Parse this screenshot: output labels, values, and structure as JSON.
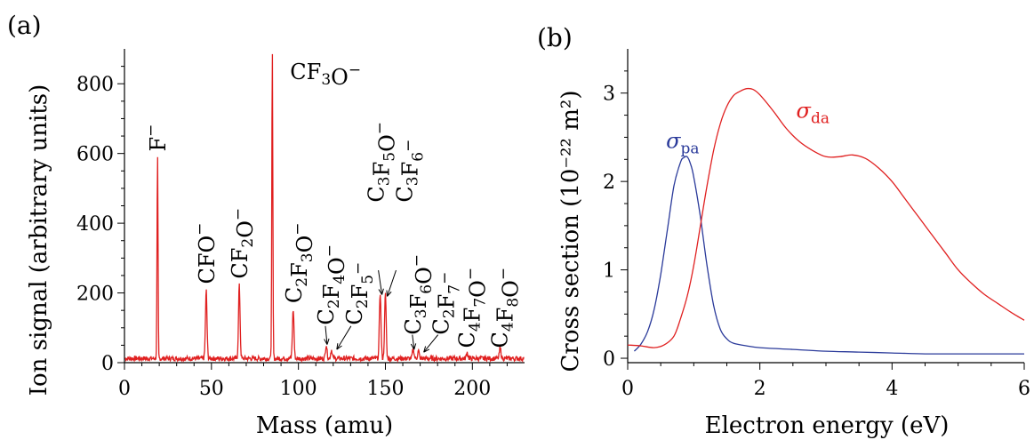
{
  "chart_data": [
    {
      "type": "line",
      "panel_label": "(a)",
      "xlabel": "Mass (amu)",
      "ylabel": "Ion signal (arbitrary units)",
      "xlim": [
        0,
        230
      ],
      "ylim": [
        0,
        900
      ],
      "x_ticks": [
        0,
        50,
        100,
        150,
        200
      ],
      "y_ticks": [
        0,
        200,
        400,
        600,
        800
      ],
      "grid": false,
      "color": "#e02020",
      "baseline": 12,
      "peaks": [
        {
          "mass": 19,
          "value": 580,
          "label": "F⁻"
        },
        {
          "mass": 47,
          "value": 195,
          "label": "CFO⁻"
        },
        {
          "mass": 66,
          "value": 210,
          "label": "CF₂O⁻"
        },
        {
          "mass": 85,
          "value": 880,
          "label": "CF₃O⁻"
        },
        {
          "mass": 97,
          "value": 140,
          "label": "C₂F₃O⁻"
        },
        {
          "mass": 116,
          "value": 40,
          "label": "C₂F₄O⁻"
        },
        {
          "mass": 119,
          "value": 25,
          "label": "C₂F₅⁻"
        },
        {
          "mass": 147,
          "value": 190,
          "label": "C₃F₅O⁻"
        },
        {
          "mass": 150,
          "value": 185,
          "label": "C₃F₆⁻"
        },
        {
          "mass": 166,
          "value": 28,
          "label": "C₃F₆O⁻"
        },
        {
          "mass": 169,
          "value": 22,
          "label": "C₂F₇⁻"
        },
        {
          "mass": 197,
          "value": 18,
          "label": "C₄F₇O⁻"
        },
        {
          "mass": 216,
          "value": 30,
          "label": "C₄F₈O⁻"
        }
      ]
    },
    {
      "type": "line",
      "panel_label": "(b)",
      "xlabel": "Electron energy (eV)",
      "ylabel": "Cross section (10⁻²² m²)",
      "xlim": [
        0,
        6
      ],
      "ylim": [
        -0.05,
        3.5
      ],
      "x_ticks": [
        0,
        2,
        4,
        6
      ],
      "y_ticks": [
        0,
        1,
        2,
        3
      ],
      "grid": false,
      "series": [
        {
          "name": "σpa",
          "color": "#2a3a9a",
          "x": [
            0.1,
            0.2,
            0.3,
            0.4,
            0.5,
            0.6,
            0.7,
            0.8,
            0.85,
            0.9,
            0.95,
            1.0,
            1.1,
            1.2,
            1.3,
            1.4,
            1.5,
            1.6,
            1.8,
            2.0,
            2.5,
            3.0,
            3.5,
            4.0,
            4.5,
            5.0,
            5.5,
            6.0
          ],
          "y": [
            0.08,
            0.16,
            0.3,
            0.55,
            0.95,
            1.45,
            1.95,
            2.22,
            2.27,
            2.28,
            2.2,
            2.05,
            1.6,
            1.05,
            0.6,
            0.33,
            0.22,
            0.17,
            0.14,
            0.12,
            0.1,
            0.08,
            0.07,
            0.06,
            0.05,
            0.05,
            0.05,
            0.05
          ]
        },
        {
          "name": "σda",
          "color": "#e02020",
          "x": [
            0.0,
            0.2,
            0.4,
            0.55,
            0.7,
            0.8,
            0.9,
            1.0,
            1.1,
            1.2,
            1.3,
            1.4,
            1.5,
            1.6,
            1.7,
            1.8,
            1.9,
            2.0,
            2.2,
            2.4,
            2.6,
            2.8,
            3.0,
            3.2,
            3.4,
            3.6,
            3.8,
            4.0,
            4.2,
            4.4,
            4.6,
            4.8,
            5.0,
            5.2,
            5.4,
            5.6,
            5.8,
            6.0
          ],
          "y": [
            0.15,
            0.14,
            0.12,
            0.15,
            0.25,
            0.45,
            0.7,
            1.05,
            1.5,
            1.95,
            2.35,
            2.65,
            2.85,
            2.97,
            3.02,
            3.05,
            3.04,
            2.98,
            2.8,
            2.6,
            2.45,
            2.35,
            2.28,
            2.28,
            2.3,
            2.26,
            2.15,
            2.0,
            1.8,
            1.6,
            1.4,
            1.2,
            1.0,
            0.85,
            0.72,
            0.62,
            0.52,
            0.43
          ]
        }
      ]
    }
  ]
}
